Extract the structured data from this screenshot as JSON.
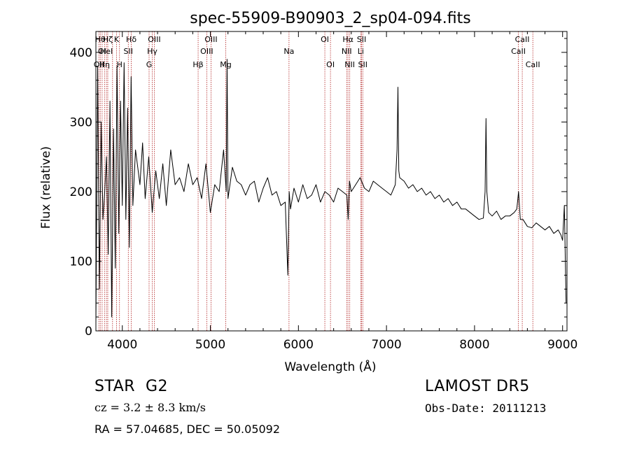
{
  "chart_data": {
    "type": "line",
    "title": "spec-55909-B90903_2_sp04-094.fits",
    "xlabel": "Wavelength (Å)",
    "ylabel": "Flux (relative)",
    "xlim": [
      3700,
      9050
    ],
    "ylim": [
      0,
      430
    ],
    "xticks": [
      4000,
      5000,
      6000,
      7000,
      8000,
      9000
    ],
    "yticks": [
      0,
      100,
      200,
      300,
      400
    ],
    "line_color": "#000000",
    "marker_color": "#b22222",
    "series": [
      {
        "x": [
          3700,
          3720,
          3740,
          3760,
          3780,
          3800,
          3820,
          3840,
          3860,
          3880,
          3900,
          3920,
          3940,
          3960,
          3980,
          4000,
          4020,
          4040,
          4060,
          4080,
          4100,
          4120,
          4150,
          4180,
          4200,
          4230,
          4260,
          4300,
          4340,
          4380,
          4420,
          4460,
          4500,
          4550,
          4600,
          4650,
          4700,
          4750,
          4800,
          4850,
          4900,
          4950,
          5000,
          5050,
          5100,
          5150,
          5180,
          5190,
          5200,
          5250,
          5300,
          5350,
          5400,
          5450,
          5500,
          5550,
          5600,
          5650,
          5700,
          5750,
          5800,
          5850,
          5880,
          5895,
          5910,
          5950,
          6000,
          6050,
          6100,
          6150,
          6200,
          6250,
          6300,
          6350,
          6400,
          6450,
          6500,
          6550,
          6565,
          6580,
          6600,
          6650,
          6700,
          6750,
          6800,
          6850,
          6900,
          6950,
          7000,
          7050,
          7100,
          7120,
          7130,
          7140,
          7150,
          7200,
          7250,
          7300,
          7350,
          7400,
          7450,
          7500,
          7550,
          7600,
          7650,
          7700,
          7750,
          7800,
          7850,
          7900,
          7950,
          8000,
          8050,
          8100,
          8120,
          8130,
          8140,
          8160,
          8200,
          8250,
          8300,
          8350,
          8400,
          8450,
          8480,
          8500,
          8520,
          8550,
          8600,
          8650,
          8700,
          8750,
          8800,
          8850,
          8900,
          8950,
          8980,
          9000,
          9020,
          9040
        ],
        "y": [
          10,
          380,
          60,
          300,
          160,
          200,
          250,
          110,
          330,
          20,
          290,
          90,
          380,
          140,
          330,
          180,
          385,
          160,
          320,
          120,
          365,
          180,
          260,
          230,
          210,
          270,
          190,
          250,
          170,
          230,
          190,
          240,
          180,
          260,
          210,
          220,
          200,
          240,
          210,
          220,
          190,
          240,
          170,
          210,
          200,
          260,
          200,
          390,
          190,
          235,
          215,
          210,
          195,
          210,
          215,
          185,
          205,
          220,
          195,
          200,
          180,
          185,
          80,
          200,
          175,
          205,
          185,
          210,
          190,
          195,
          210,
          185,
          200,
          195,
          185,
          205,
          200,
          195,
          160,
          215,
          200,
          210,
          220,
          205,
          200,
          215,
          210,
          205,
          200,
          195,
          210,
          260,
          350,
          230,
          220,
          215,
          205,
          210,
          200,
          205,
          195,
          200,
          190,
          195,
          185,
          190,
          180,
          185,
          175,
          175,
          170,
          165,
          160,
          162,
          200,
          305,
          200,
          170,
          165,
          172,
          160,
          165,
          165,
          170,
          175,
          200,
          160,
          160,
          150,
          148,
          155,
          150,
          145,
          150,
          140,
          145,
          138,
          130,
          180,
          40
        ]
      }
    ],
    "line_markers": [
      {
        "wavelength": 3734,
        "labels": [
          "",
          "",
          "OII"
        ]
      },
      {
        "wavelength": 3750,
        "labels": [
          "Hθ",
          "",
          ""
        ]
      },
      {
        "wavelength": 3771,
        "labels": [
          "",
          "OI",
          ""
        ]
      },
      {
        "wavelength": 3798,
        "labels": [
          "",
          "",
          "Hη"
        ]
      },
      {
        "wavelength": 3820,
        "labels": [
          "",
          "HeI",
          ""
        ]
      },
      {
        "wavelength": 3835,
        "labels": [
          "Hζ",
          "",
          ""
        ]
      },
      {
        "wavelength": 3889,
        "labels": [
          "",
          "",
          ""
        ]
      },
      {
        "wavelength": 3934,
        "labels": [
          "K",
          "",
          ""
        ]
      },
      {
        "wavelength": 3968,
        "labels": [
          "",
          "",
          "H"
        ]
      },
      {
        "wavelength": 4068,
        "labels": [
          "",
          "SII",
          ""
        ]
      },
      {
        "wavelength": 4102,
        "labels": [
          "Hδ",
          "",
          ""
        ]
      },
      {
        "wavelength": 4304,
        "labels": [
          "",
          "",
          "G"
        ]
      },
      {
        "wavelength": 4340,
        "labels": [
          "",
          "Hγ",
          ""
        ]
      },
      {
        "wavelength": 4363,
        "labels": [
          "OIII",
          "",
          ""
        ]
      },
      {
        "wavelength": 4861,
        "labels": [
          "",
          "",
          "Hβ"
        ]
      },
      {
        "wavelength": 4959,
        "labels": [
          "",
          "OIII",
          ""
        ]
      },
      {
        "wavelength": 5007,
        "labels": [
          "OIII",
          "",
          ""
        ]
      },
      {
        "wavelength": 5175,
        "labels": [
          "",
          "",
          "Mg"
        ]
      },
      {
        "wavelength": 5893,
        "labels": [
          "",
          "Na",
          ""
        ]
      },
      {
        "wavelength": 6300,
        "labels": [
          "OI",
          "",
          ""
        ]
      },
      {
        "wavelength": 6364,
        "labels": [
          "",
          "",
          "OI"
        ]
      },
      {
        "wavelength": 6548,
        "labels": [
          "",
          "NII",
          ""
        ]
      },
      {
        "wavelength": 6563,
        "labels": [
          "Hα",
          "",
          ""
        ]
      },
      {
        "wavelength": 6583,
        "labels": [
          "",
          "",
          "NII"
        ]
      },
      {
        "wavelength": 6708,
        "labels": [
          "",
          "Li",
          ""
        ]
      },
      {
        "wavelength": 6717,
        "labels": [
          "SII",
          "",
          ""
        ]
      },
      {
        "wavelength": 6731,
        "labels": [
          "",
          "",
          "SII"
        ]
      },
      {
        "wavelength": 8498,
        "labels": [
          "",
          "CaII",
          ""
        ]
      },
      {
        "wavelength": 8542,
        "labels": [
          "CaII",
          "",
          ""
        ]
      },
      {
        "wavelength": 8662,
        "labels": [
          "",
          "",
          "CaII"
        ]
      }
    ]
  },
  "info": {
    "object_class": "STAR",
    "subclass": "G2",
    "survey": "LAMOST DR5",
    "redshift_line": "cz = 3.2 ± 8.3 km/s",
    "obs_date": "Obs-Date: 20111213",
    "coords": "RA =  57.04685, DEC =  50.05092"
  }
}
